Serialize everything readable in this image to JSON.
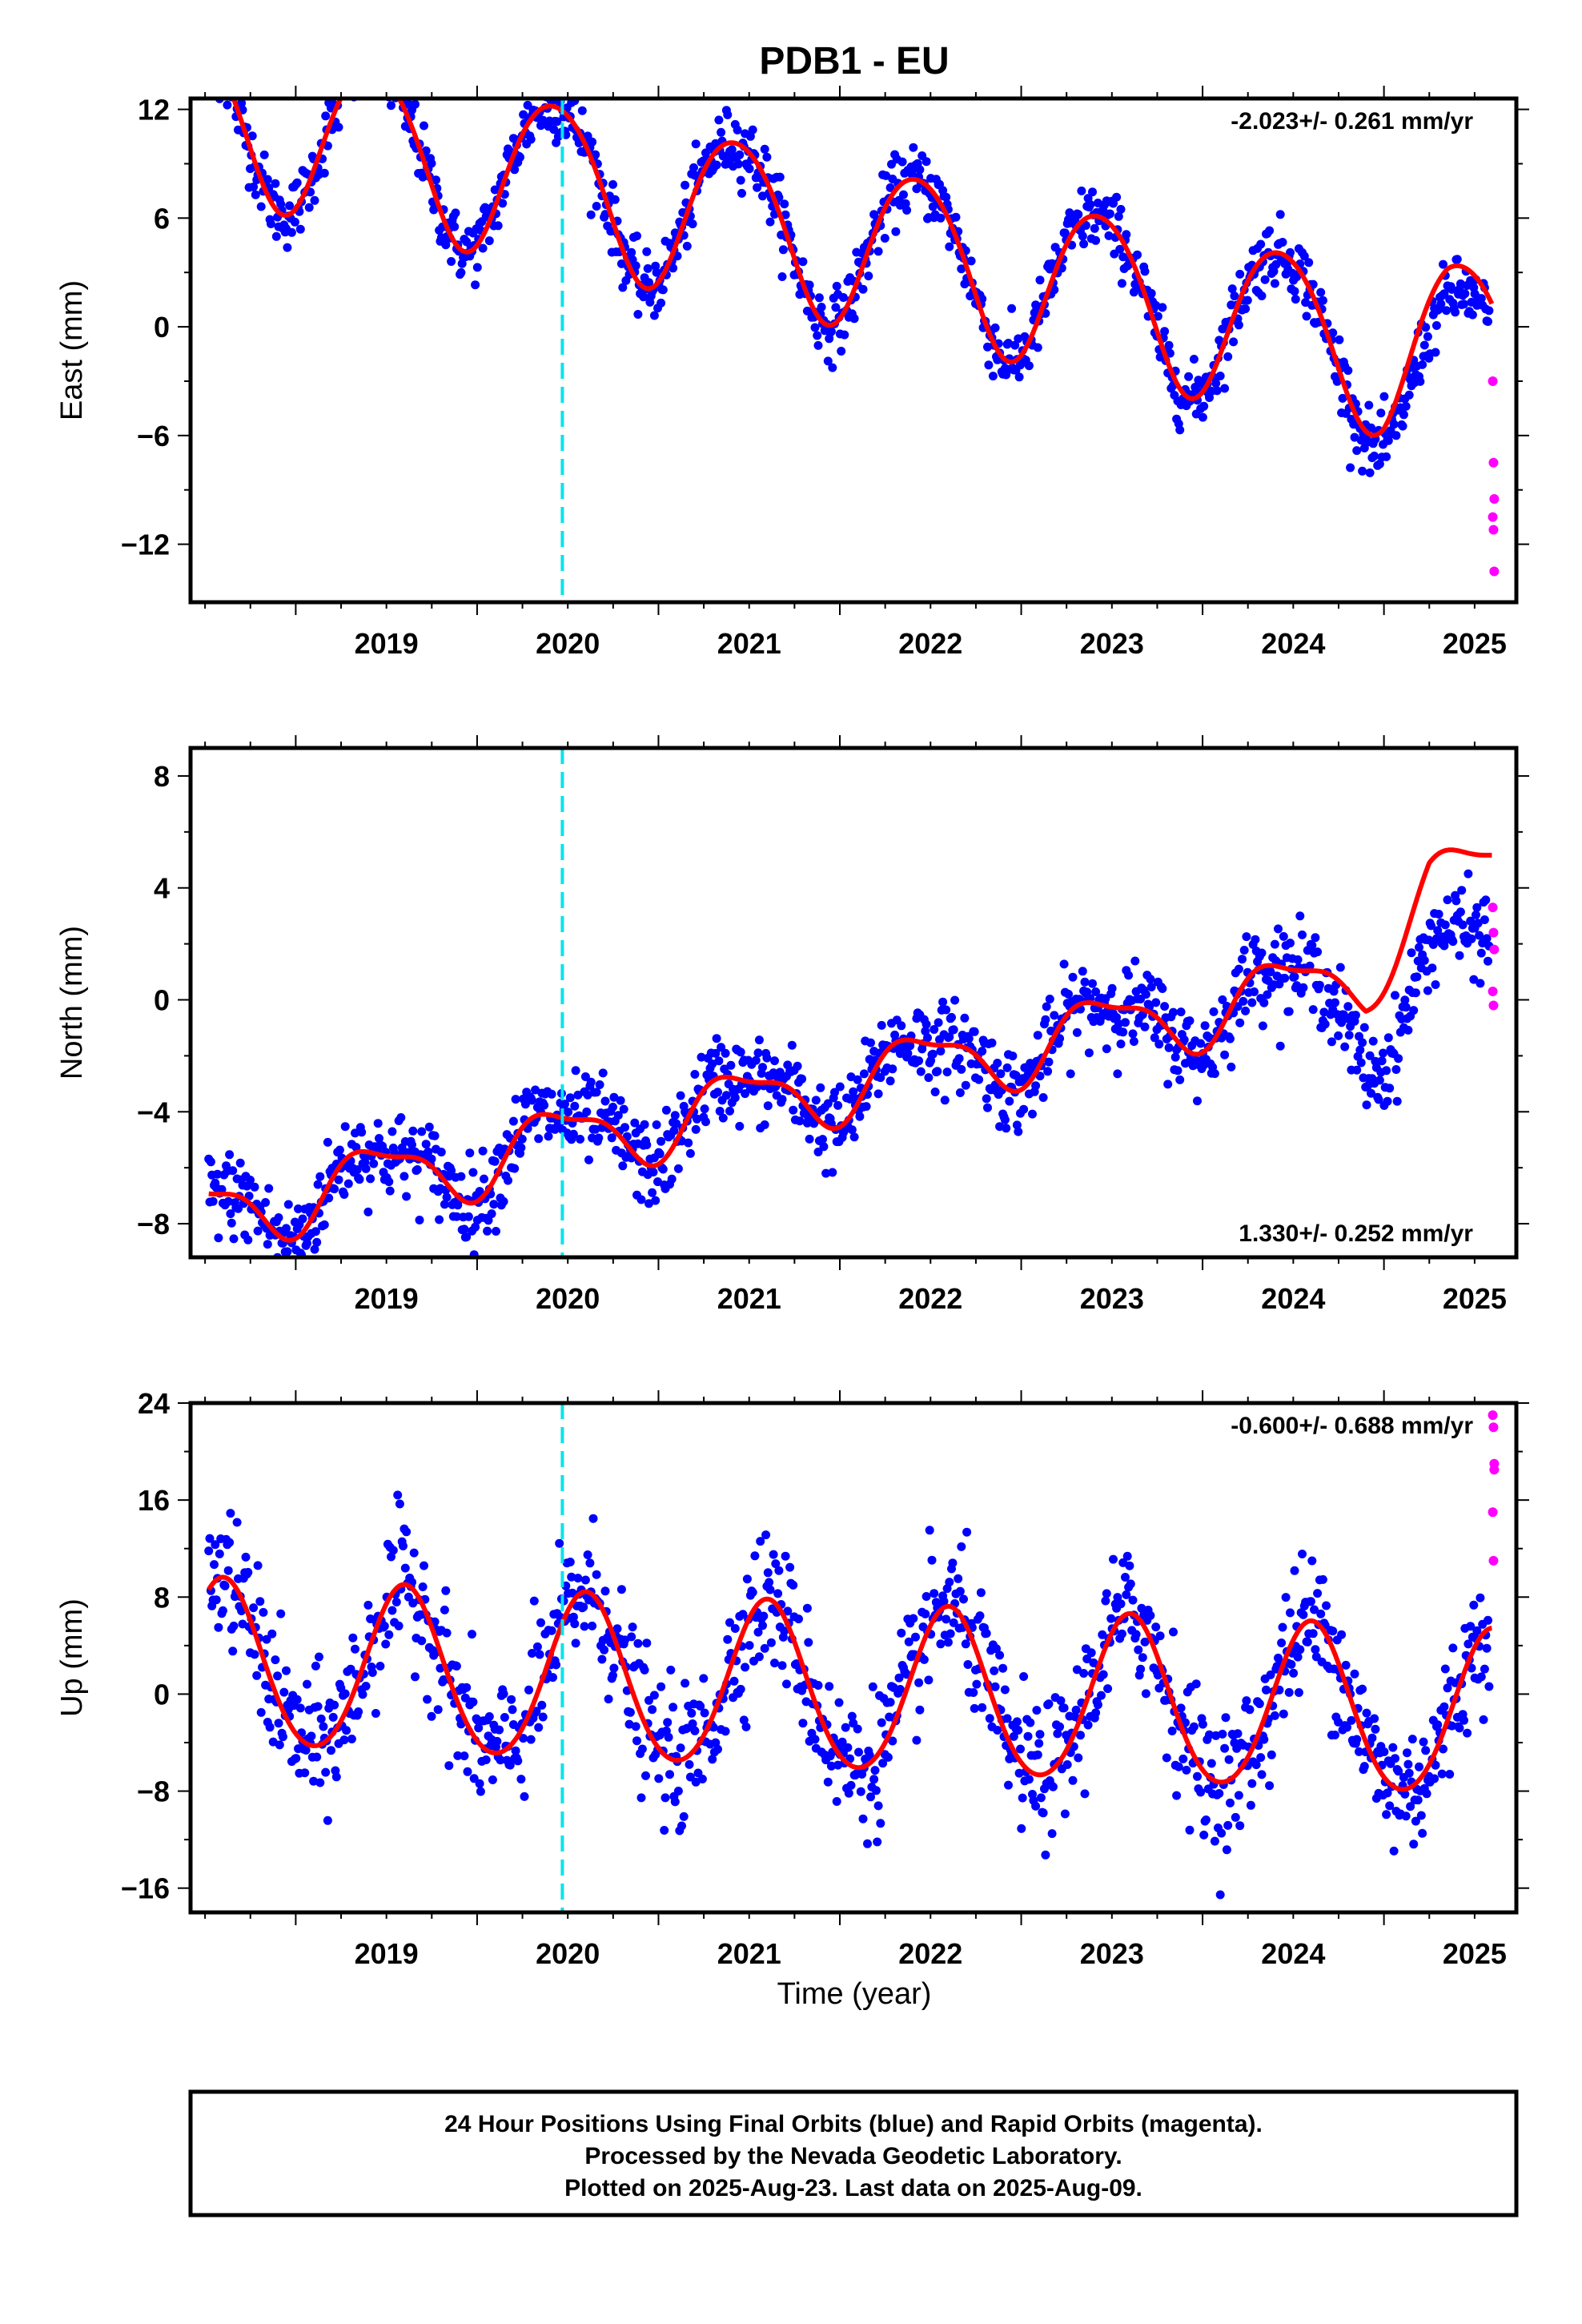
{
  "title": "PDB1 - EU",
  "xlabel": "Time (year)",
  "footer_lines": [
    "24 Hour Positions Using Final Orbits (blue) and Rapid Orbits (magenta).",
    "Processed by the Nevada Geodetic Laboratory.",
    "Plotted on 2025-Aug-23. Last data on 2025-Aug-09."
  ],
  "colors": {
    "final": "#0000ff",
    "rapid": "#ff00ff",
    "model": "#ff0000",
    "event": "#00e5ee"
  },
  "chart_data": [
    {
      "type": "scatter",
      "name": "east",
      "ylabel": "East (mm)",
      "rate_text": "-2.023+/- 0.261 mm/yr",
      "rate_position": "top-right",
      "xlim": [
        2018.42,
        2025.73
      ],
      "ylim": [
        -15.2,
        12.6
      ],
      "x_ticks": [
        2019,
        2020,
        2021,
        2022,
        2023,
        2024,
        2025
      ],
      "y_ticks": [
        12,
        6,
        0,
        -6,
        -12
      ],
      "y_tick_labels": [
        "12",
        "6",
        "0",
        "−6",
        "−12"
      ],
      "event_x": 2020.47,
      "model": {
        "offset": 4.85,
        "trend": -2.023,
        "amp_annual": 4.5,
        "peak_annual": 0.43,
        "amp_semi": 0.4,
        "peak_semi": 0.2,
        "post_fit_shift_after": 2025.0,
        "post_fit_shift": 1.3
      },
      "data": {
        "pattern": "model_plus_noise",
        "noise_sd": 0.9,
        "residual_after_2025": -2.0,
        "start": 2018.52,
        "end": 2025.58
      },
      "rapid_y": [
        -3.0,
        -7.5,
        -9.5,
        -10.5,
        -11.2,
        -13.5
      ]
    },
    {
      "type": "scatter",
      "name": "north",
      "ylabel": "North (mm)",
      "rate_text": "1.330+/- 0.252 mm/yr",
      "rate_position": "bottom-right",
      "xlim": [
        2018.42,
        2025.73
      ],
      "ylim": [
        -9.2,
        9.0
      ],
      "x_ticks": [
        2019,
        2020,
        2021,
        2022,
        2023,
        2024,
        2025
      ],
      "y_ticks": [
        8,
        4,
        0,
        -4,
        -8
      ],
      "y_tick_labels": [
        "8",
        "4",
        "0",
        "−4",
        "−8"
      ],
      "event_x": 2020.47,
      "model": {
        "offset": -3.0,
        "trend": 1.33,
        "amp_annual": 1.2,
        "peak_annual": 0.45,
        "amp_semi": 0.4,
        "peak_semi": 0.25,
        "post_fit_shift_after": 2024.9,
        "post_fit_shift": 2.8
      },
      "data": {
        "pattern": "model_plus_noise",
        "noise_sd": 0.75,
        "residual_after_2024_9": -2.6,
        "start": 2018.52,
        "end": 2025.58
      },
      "rapid_y": [
        3.3,
        2.4,
        1.8,
        0.3,
        -0.2
      ]
    },
    {
      "type": "scatter",
      "name": "up",
      "ylabel": "Up (mm)",
      "rate_text": "-0.600+/- 0.688 mm/yr",
      "rate_position": "top-right",
      "xlim": [
        2018.42,
        2025.73
      ],
      "ylim": [
        -18.0,
        24.0
      ],
      "x_ticks": [
        2019,
        2020,
        2021,
        2022,
        2023,
        2024,
        2025
      ],
      "y_ticks": [
        24,
        16,
        8,
        0,
        -8,
        -16
      ],
      "y_tick_labels": [
        "24",
        "16",
        "8",
        "0",
        "−8",
        "−16"
      ],
      "event_x": 2020.47,
      "model": {
        "offset": 0.3,
        "trend": -0.6,
        "amp_annual": 6.8,
        "peak_annual": 0.6,
        "amp_semi": 0.5,
        "peak_semi": 0.1
      },
      "data": {
        "pattern": "model_plus_noise",
        "noise_sd": 2.8,
        "start": 2018.52,
        "end": 2025.58
      },
      "rapid_y": [
        23.0,
        22.0,
        19.0,
        15.0,
        11.0,
        18.5
      ]
    }
  ]
}
